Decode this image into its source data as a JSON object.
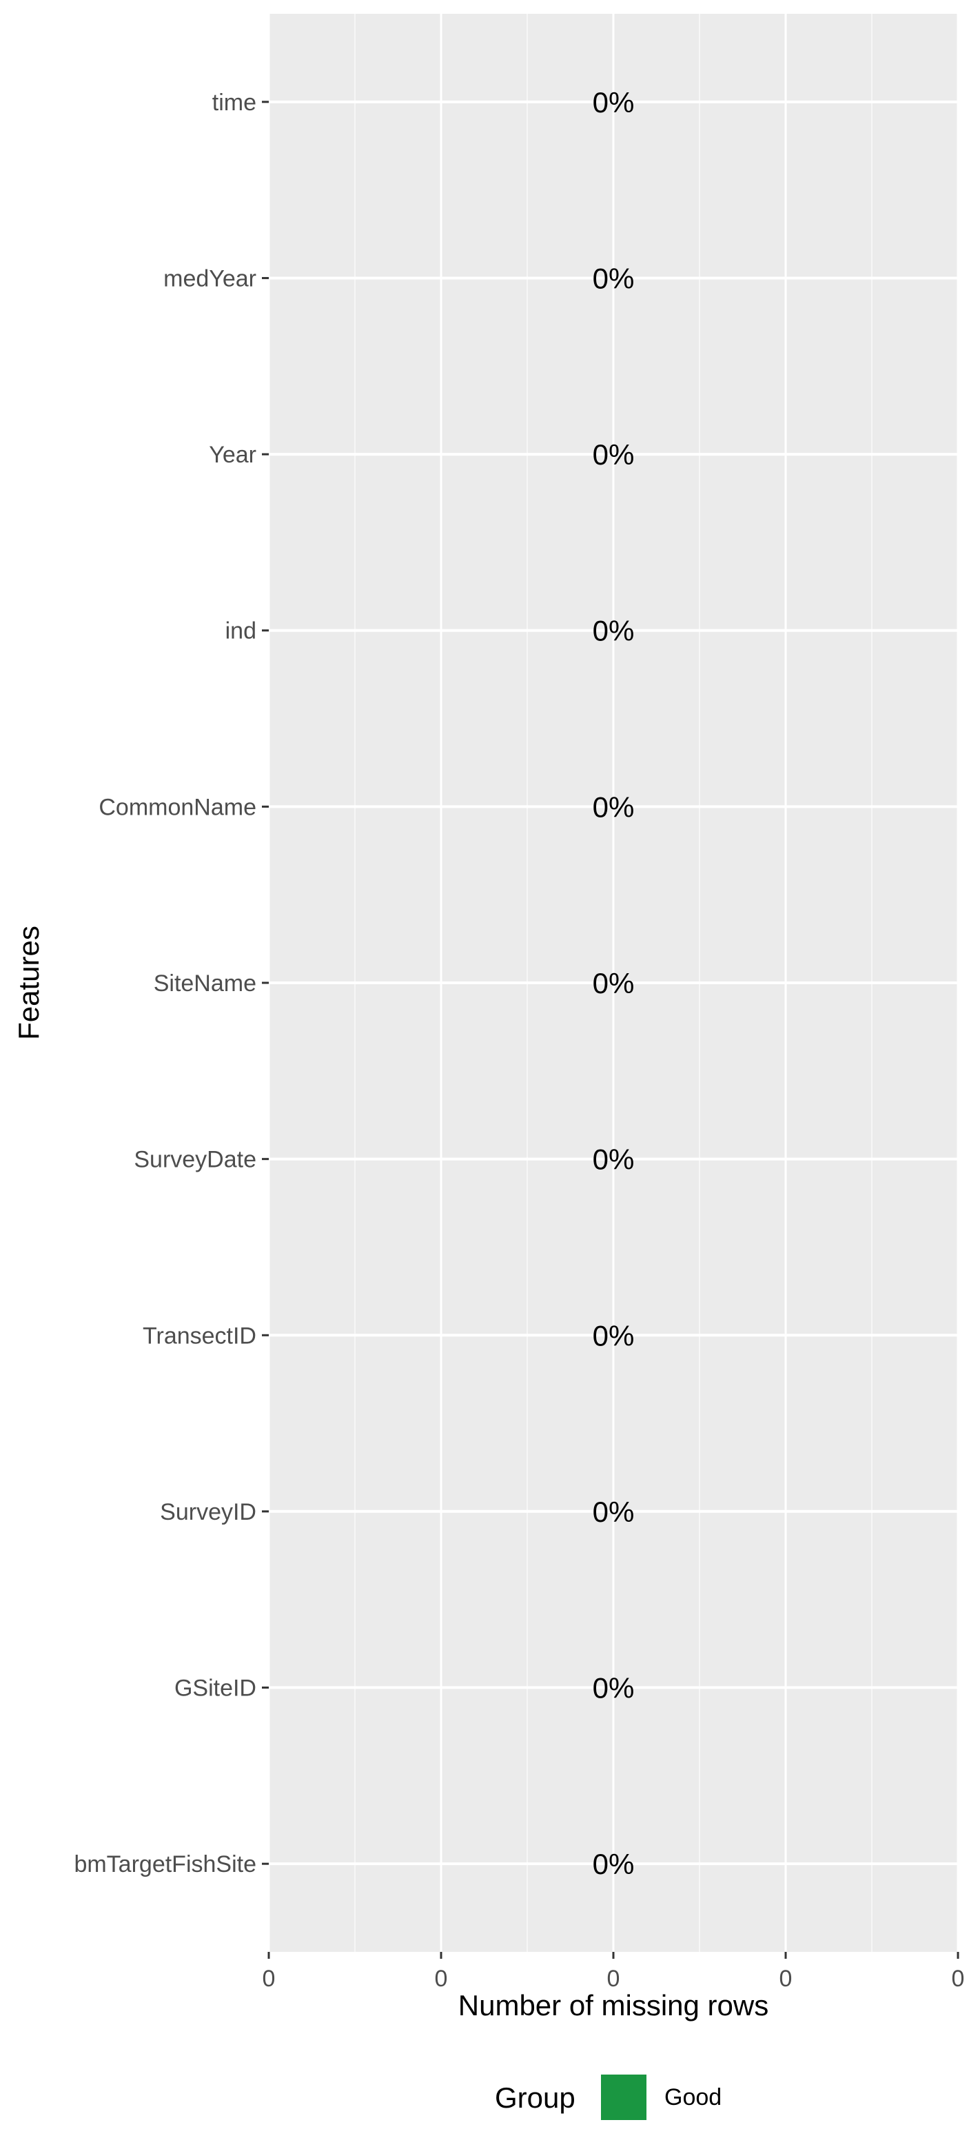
{
  "chart_data": {
    "type": "bar",
    "orientation": "horizontal",
    "categories": [
      "time",
      "medYear",
      "Year",
      "ind",
      "CommonName",
      "SiteName",
      "SurveyDate",
      "TransectID",
      "SurveyID",
      "GSiteID",
      "bmTargetFishSite"
    ],
    "values": [
      0,
      0,
      0,
      0,
      0,
      0,
      0,
      0,
      0,
      0,
      0
    ],
    "data_labels": [
      "0%",
      "0%",
      "0%",
      "0%",
      "0%",
      "0%",
      "0%",
      "0%",
      "0%",
      "0%",
      "0%"
    ],
    "group": [
      "Good",
      "Good",
      "Good",
      "Good",
      "Good",
      "Good",
      "Good",
      "Good",
      "Good",
      "Good",
      "Good"
    ],
    "xlabel": "Number of missing rows",
    "ylabel": "Features",
    "x_tick_labels": [
      "0",
      "0",
      "0",
      "0",
      "0"
    ],
    "grid": true,
    "legend": {
      "title": "Group",
      "position": "bottom",
      "entries": [
        {
          "label": "Good",
          "color": "#1a9641"
        }
      ]
    },
    "colors": {
      "panel_background": "#ebebeb",
      "grid_line": "#ffffff",
      "tick_text": "#4d4d4d",
      "tick_mark": "#333333"
    }
  }
}
